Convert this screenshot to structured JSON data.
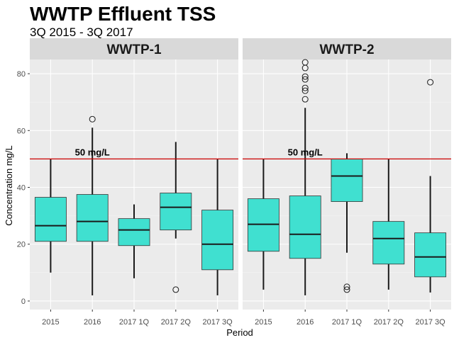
{
  "chart_data": {
    "type": "boxplot",
    "title": "WWTP Effluent TSS",
    "subtitle": "3Q 2015 - 3Q 2017",
    "xlabel": "Period",
    "ylabel": "Concentration mg/L",
    "ylim": [
      -3,
      85
    ],
    "yticks": [
      0,
      20,
      40,
      60,
      80
    ],
    "grid": true,
    "categories": [
      "2015",
      "2016",
      "2017 1Q",
      "2017 2Q",
      "2017 3Q"
    ],
    "reference_line": {
      "value": 50,
      "label": "50 mg/L",
      "color": "#cc0000"
    },
    "colors": {
      "box_fill": "#40e0d0",
      "panel_bg": "#ebebeb",
      "strip_bg": "#d9d9d9",
      "grid": "#ffffff"
    },
    "panels": [
      {
        "name": "WWTP-1",
        "boxes": [
          {
            "category": "2015",
            "min": 10,
            "q1": 21,
            "median": 26.5,
            "q3": 36.5,
            "max": 50,
            "outliers": []
          },
          {
            "category": "2016",
            "min": 2,
            "q1": 21,
            "median": 28,
            "q3": 37.5,
            "max": 61,
            "outliers": [
              64
            ]
          },
          {
            "category": "2017 1Q",
            "min": 8,
            "q1": 19.5,
            "median": 25,
            "q3": 29,
            "max": 34,
            "outliers": []
          },
          {
            "category": "2017 2Q",
            "min": 22,
            "q1": 25,
            "median": 33,
            "q3": 38,
            "max": 56,
            "outliers": [
              4
            ]
          },
          {
            "category": "2017 3Q",
            "min": 2,
            "q1": 11,
            "median": 20,
            "q3": 32,
            "max": 50,
            "outliers": []
          }
        ]
      },
      {
        "name": "WWTP-2",
        "boxes": [
          {
            "category": "2015",
            "min": 4,
            "q1": 17.5,
            "median": 27,
            "q3": 36,
            "max": 50,
            "outliers": []
          },
          {
            "category": "2016",
            "min": 2,
            "q1": 15,
            "median": 23.5,
            "q3": 37,
            "max": 68,
            "outliers": [
              71,
              74,
              75,
              78,
              79,
              82,
              84
            ]
          },
          {
            "category": "2017 1Q",
            "min": 17,
            "q1": 35,
            "median": 44,
            "q3": 50,
            "max": 52,
            "outliers": [
              4,
              5
            ]
          },
          {
            "category": "2017 2Q",
            "min": 4,
            "q1": 13,
            "median": 22,
            "q3": 28,
            "max": 50,
            "outliers": []
          },
          {
            "category": "2017 3Q",
            "min": 3,
            "q1": 8.5,
            "median": 15.5,
            "q3": 24,
            "max": 44,
            "outliers": [
              77
            ]
          }
        ]
      }
    ]
  }
}
